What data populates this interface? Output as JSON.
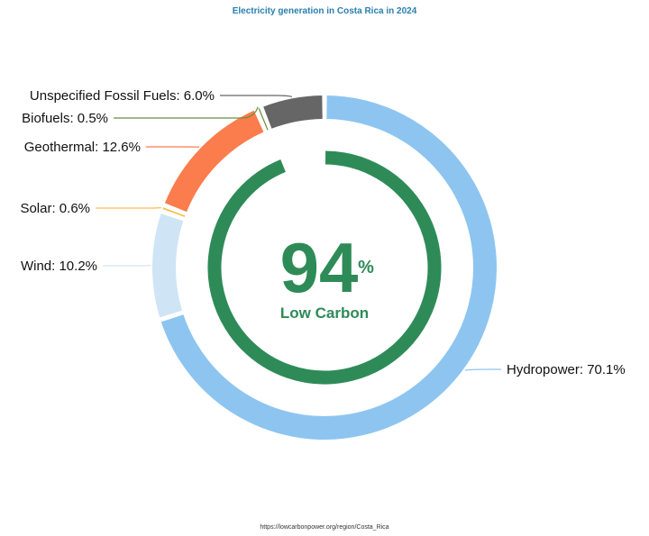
{
  "title": "Electricity generation in Costa Rica in 2024",
  "source": "https://lowcarbonpower.org/region/Costa_Rica",
  "center": {
    "value": "94",
    "unit": "%",
    "label": "Low Carbon"
  },
  "chart_data": {
    "type": "pie",
    "title": "Electricity generation in Costa Rica in 2024",
    "slices": [
      {
        "label": "Hydropower: 70.1%",
        "name": "Hydropower",
        "value": 70.1,
        "color": "#8dc5f0"
      },
      {
        "label": "Wind: 10.2%",
        "name": "Wind",
        "value": 10.2,
        "color": "#cfe5f6"
      },
      {
        "label": "Solar: 0.6%",
        "name": "Solar",
        "value": 0.6,
        "color": "#f6c04c"
      },
      {
        "label": "Geothermal: 12.6%",
        "name": "Geothermal",
        "value": 12.6,
        "color": "#fb7c4d"
      },
      {
        "label": "Biofuels: 0.5%",
        "name": "Biofuels",
        "value": 0.5,
        "color": "#6b8f3a"
      },
      {
        "label": "Unspecified Fossil Fuels: 6.0%",
        "name": "Unspecified Fossil Fuels",
        "value": 6.0,
        "color": "#666666"
      }
    ],
    "inner_ring": {
      "value": 94,
      "label": "Low Carbon",
      "color": "#2e8b57"
    }
  }
}
